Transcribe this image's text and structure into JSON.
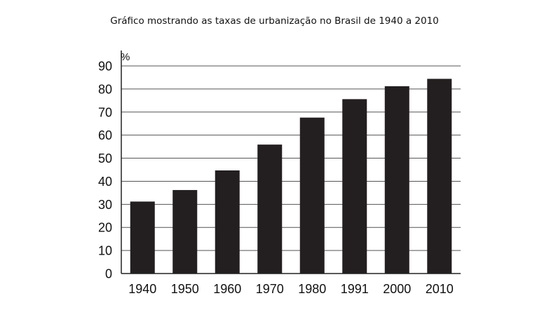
{
  "chart_data": {
    "type": "bar",
    "title": "Gráfico mostrando as taxas de urbanização no Brasil de 1940 a 2010",
    "xlabel": "",
    "ylabel": "%",
    "categories": [
      "1940",
      "1950",
      "1960",
      "1970",
      "1980",
      "1991",
      "2000",
      "2010"
    ],
    "values": [
      31.2,
      36.2,
      44.7,
      55.9,
      67.6,
      75.6,
      81.2,
      84.4
    ],
    "ylim": [
      0,
      90
    ],
    "yticks": [
      0,
      10,
      20,
      30,
      40,
      50,
      60,
      70,
      80,
      90
    ],
    "grid": true,
    "bar_color": "#231f20",
    "grid_color": "#555555"
  }
}
